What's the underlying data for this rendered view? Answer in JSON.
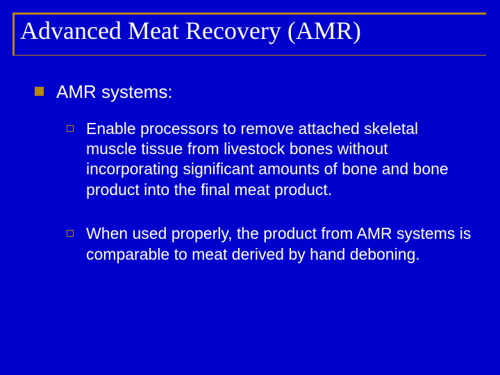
{
  "slide": {
    "background_color": "#0000cc",
    "title": {
      "text": "Advanced Meat Recovery (AMR)",
      "font_family": "Times New Roman",
      "font_size_pt": 36,
      "color": "#ffffff",
      "rule_color": "#b8860b"
    },
    "bullets": {
      "level1": {
        "bullet_color": "#b8860b",
        "bullet_style": "filled-square",
        "font_size_pt": 26,
        "color": "#ffffff",
        "items": [
          {
            "text": "AMR systems:"
          }
        ]
      },
      "level2": {
        "bullet_color": "#b8860b",
        "bullet_style": "hollow-square",
        "font_size_pt": 23,
        "color": "#ffffff",
        "items": [
          {
            "text": "Enable processors to remove attached skeletal muscle tissue from livestock bones without incorporating significant amounts of bone and bone product into the final meat product."
          },
          {
            "text": "When used properly, the product from AMR systems is comparable to meat derived by hand deboning."
          }
        ]
      }
    }
  }
}
